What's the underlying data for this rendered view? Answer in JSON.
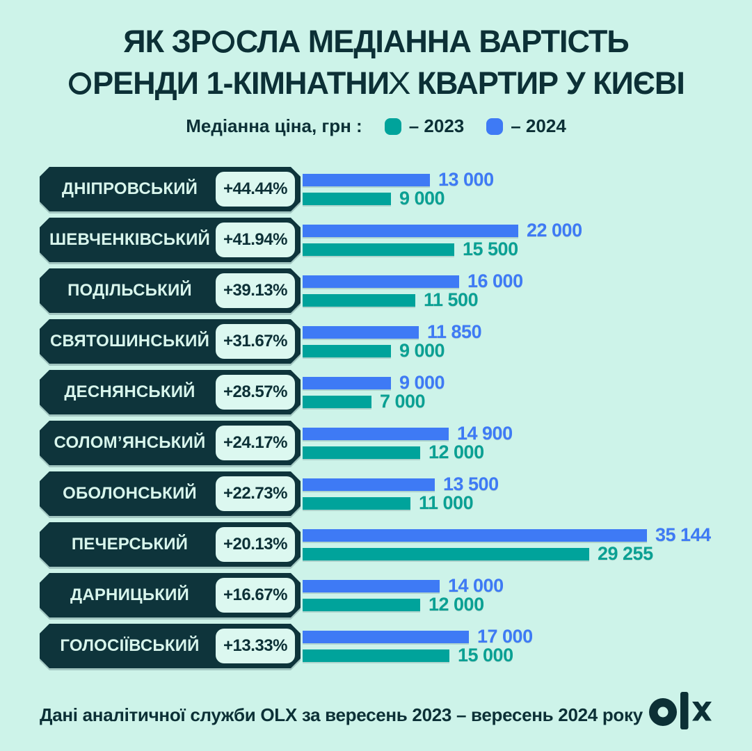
{
  "page": {
    "background": "#CDF3E9"
  },
  "colors": {
    "dark": "#0C3036",
    "card": "#0E343B",
    "mint_text": "#D8F5EC",
    "badge_bg": "#DCF8F0",
    "blue": "#3E7AF5",
    "teal": "#00A39B",
    "teal_text": "#0AA093"
  },
  "title": {
    "full": "ЯК ЗРОСЛА МЕДІАННА ВАРТІСТЬ ОРЕНДИ 1-КІМНАТНИХ КВАРТИР У КИЄВІ",
    "lines": [
      [
        {
          "t": "ЯК ЗР"
        },
        {
          "t": "О",
          "style": "ring"
        },
        {
          "t": "СЛА МЕДІАННА ВАРТІСТЬ"
        }
      ],
      [
        {
          "t": "О",
          "style": "ring"
        },
        {
          "t": "РЕНДИ 1-КІМНАТНИ"
        },
        {
          "t": "Х",
          "style": "x"
        },
        {
          "t": " КВАРТИР У КИЄВІ"
        }
      ]
    ]
  },
  "legend": {
    "label": "Медіанна ціна, грн :",
    "item_2023": "– 2023",
    "item_2024": "– 2024"
  },
  "chart_data": {
    "type": "bar",
    "orientation": "horizontal",
    "title": "ЯК ЗРОСЛА МЕДІАННА ВАРТІСТЬ ОРЕНДИ 1-КІМНАТНИХ КВАРТИР У КИЄВІ",
    "unit": "грн",
    "x_max": 35144,
    "series_names": [
      "2023",
      "2024"
    ],
    "rows": [
      {
        "district": "ДНІПРОВСЬКИЙ",
        "change_label": "+44.44%",
        "value_2024": 13000,
        "value_2023": 9000,
        "label_2024": "13 000",
        "label_2023": "9 000"
      },
      {
        "district": "ШЕВЧЕНКІВСЬКИЙ",
        "change_label": "+41.94%",
        "value_2024": 22000,
        "value_2023": 15500,
        "label_2024": "22 000",
        "label_2023": "15 500"
      },
      {
        "district": "ПОДІЛЬСЬКИЙ",
        "change_label": "+39.13%",
        "value_2024": 16000,
        "value_2023": 11500,
        "label_2024": "16 000",
        "label_2023": "11 500"
      },
      {
        "district": "СВЯТОШИНСЬКИЙ",
        "change_label": "+31.67%",
        "value_2024": 11850,
        "value_2023": 9000,
        "label_2024": "11 850",
        "label_2023": "9 000"
      },
      {
        "district": "ДЕСНЯНСЬКИЙ",
        "change_label": "+28.57%",
        "value_2024": 9000,
        "value_2023": 7000,
        "label_2024": "9 000",
        "label_2023": "7 000"
      },
      {
        "district": "СОЛОМ’ЯНСЬКИЙ",
        "change_label": "+24.17%",
        "value_2024": 14900,
        "value_2023": 12000,
        "label_2024": "14 900",
        "label_2023": "12 000"
      },
      {
        "district": "ОБОЛОНСЬКИЙ",
        "change_label": "+22.73%",
        "value_2024": 13500,
        "value_2023": 11000,
        "label_2024": "13 500",
        "label_2023": "11 000"
      },
      {
        "district": "ПЕЧЕРСЬКИЙ",
        "change_label": "+20.13%",
        "value_2024": 35144,
        "value_2023": 29255,
        "label_2024": "35 144",
        "label_2023": "29 255"
      },
      {
        "district": "ДАРНИЦЬКИЙ",
        "change_label": "+16.67%",
        "value_2024": 14000,
        "value_2023": 12000,
        "label_2024": "14 000",
        "label_2023": "12 000"
      },
      {
        "district": "ГОЛОСІЇВСЬКИЙ",
        "change_label": "+13.33%",
        "value_2024": 17000,
        "value_2023": 15000,
        "label_2024": "17 000",
        "label_2023": "15 000"
      }
    ]
  },
  "footer": {
    "source": "Дані аналітичної служби OLX за вересень 2023 – вересень 2024 року",
    "logo": "OLX"
  }
}
